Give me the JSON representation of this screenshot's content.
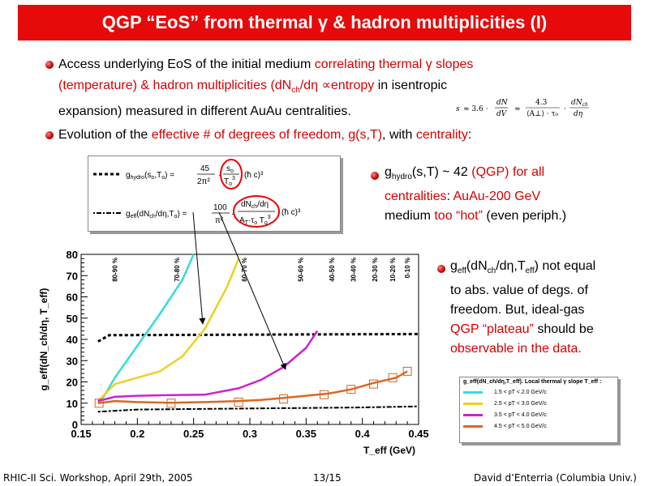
{
  "title": "QGP “EoS” from thermal γ & hadron multiplicities (I)",
  "bullets": {
    "b1": {
      "t1": "Access underlying EoS of the initial medium ",
      "r1": "correlating thermal γ slopes",
      "r2": "(temperature) & hadron multiplicities (dN",
      "r2sub": "ch",
      "r2b": "/dη ∝entropy",
      "t2": " in isentropic",
      "t3": "expansion) measured in different AuAu centralities."
    },
    "b2": {
      "t1": "Evolution of the ",
      "r1": "effective # of degrees of freedom, g(s,T)",
      "t2": ", with ",
      "r2": "centrality",
      "t3": ":"
    },
    "b3": {
      "g": "g",
      "gsub": "hydro",
      "t1": "(s,T) ~ 42 ",
      "r1": "(QGP) for all",
      "r2": "centralities",
      "t2": ": ",
      "r3": "AuAu-200 GeV",
      "t3": "medium ",
      "r4": "too “hot”",
      "t4": " (even periph.)"
    },
    "b4": {
      "g": "g",
      "gsub": "eff",
      "t1": "(dN",
      "sub1": "ch",
      "t2": "/dη,T",
      "sub2": "eff",
      "t3": ") not equal",
      "l2": "to abs. value of degs. of",
      "l3": "freedom. But, ideal-gas",
      "r1": "QGP “plateau”",
      "t4": " should be",
      "r2": "observable in the data."
    }
  },
  "formula_main": "s ≈ 3.6 · dN/dV ≈ 4.3/(⟨A⊥⟩ · τ0) · dNch/dη",
  "inset": {
    "hydro": "g_hydro(s0,T0) = 45/(2π²) · [s0/T0³] · (ħc)³",
    "eff": "g_eff(dNch/dη,T0) = 100/π² · [dNch/dη / (A⊥τ0 T0³)] · (ħc)³"
  },
  "chart_data": {
    "type": "line",
    "xlabel": "T_eff (GeV)",
    "ylabel": "g_eff(dN_ch/dη, T_eff)",
    "xlim": [
      0.15,
      0.45
    ],
    "ylim": [
      0,
      80
    ],
    "xticks": [
      "0.15",
      "0.2",
      "0.25",
      "0.3",
      "0.35",
      "0.4",
      "0.45"
    ],
    "yticks": [
      "0",
      "10",
      "20",
      "30",
      "40",
      "50",
      "60",
      "70",
      "80"
    ],
    "centrality_labels": [
      {
        "text": "80-90 %",
        "x": 0.18
      },
      {
        "text": "70-80 %",
        "x": 0.235
      },
      {
        "text": "60-70 %",
        "x": 0.295
      },
      {
        "text": "50-60 %",
        "x": 0.345
      },
      {
        "text": "40-50 %",
        "x": 0.373
      },
      {
        "text": "30-40 %",
        "x": 0.392
      },
      {
        "text": "20-30 %",
        "x": 0.411
      },
      {
        "text": "10-20 %",
        "x": 0.427
      },
      {
        "text": "0-10 %",
        "x": 0.44
      }
    ],
    "series": [
      {
        "name": "1.5 < pT < 2.0 GeV/c",
        "color": "#33dddd",
        "x": [
          0.165,
          0.17,
          0.18,
          0.2,
          0.22,
          0.24,
          0.25
        ],
        "y": [
          10,
          13,
          22,
          37,
          52,
          68,
          80
        ]
      },
      {
        "name": "2.5 < pT < 3.0 GeV/c",
        "color": "#eed020",
        "x": [
          0.165,
          0.18,
          0.2,
          0.22,
          0.24,
          0.26,
          0.28,
          0.29
        ],
        "y": [
          11,
          19,
          22,
          25,
          32,
          45,
          65,
          78
        ]
      },
      {
        "name": "3.5 < pT < 4.0 GeV/c",
        "color": "#cc22cc",
        "x": [
          0.165,
          0.18,
          0.2,
          0.23,
          0.26,
          0.29,
          0.31,
          0.33,
          0.35,
          0.36
        ],
        "y": [
          11,
          13,
          13.5,
          13.8,
          14,
          17,
          21,
          27,
          36,
          44
        ]
      },
      {
        "name": "4.5 < pT < 5.0 GeV/c",
        "color": "#dd6622",
        "x": [
          0.165,
          0.18,
          0.2,
          0.23,
          0.26,
          0.29,
          0.31,
          0.33,
          0.35,
          0.37,
          0.39,
          0.41,
          0.43,
          0.44
        ],
        "y": [
          10,
          11,
          10.5,
          10.2,
          10.5,
          11,
          11.5,
          12.5,
          13.5,
          14.5,
          16.5,
          19.5,
          22,
          25
        ]
      }
    ],
    "markers": [
      {
        "x": 0.166,
        "y": 10
      },
      {
        "x": 0.23,
        "y": 10
      },
      {
        "x": 0.29,
        "y": 10.5
      },
      {
        "x": 0.33,
        "y": 12
      },
      {
        "x": 0.366,
        "y": 14
      },
      {
        "x": 0.39,
        "y": 16.5
      },
      {
        "x": 0.41,
        "y": 19
      },
      {
        "x": 0.427,
        "y": 22
      },
      {
        "x": 0.44,
        "y": 25
      }
    ],
    "hydro_line": {
      "x": [
        0.165,
        0.175,
        0.45
      ],
      "y": [
        39,
        42,
        42.5
      ]
    },
    "low_line": {
      "x": [
        0.165,
        0.2,
        0.3,
        0.4,
        0.45
      ],
      "y": [
        6,
        7,
        7.5,
        8,
        8.5
      ]
    },
    "legend_title": "g_eff(dN_ch/dη,T_eff). Local thermal γ slope T_eff :"
  },
  "footer": {
    "left": "RHIC-II Sci. Workshop, April 29th, 2005",
    "center": "13/15",
    "right": "David d’Enterria (Columbia Univ.)"
  }
}
